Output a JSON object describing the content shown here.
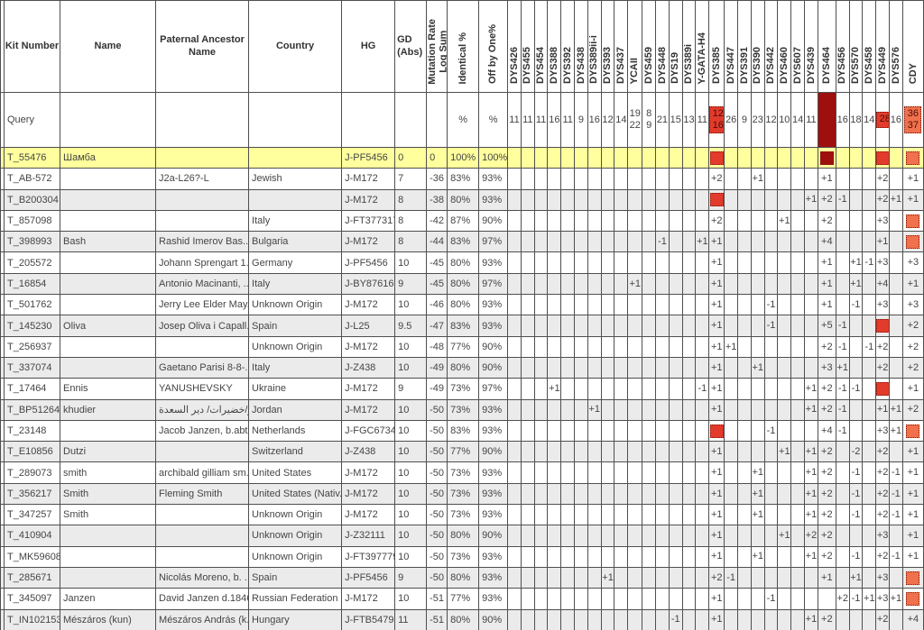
{
  "table": {
    "left_headers": [
      {
        "key": "kit",
        "label": "Kit Number"
      },
      {
        "key": "name",
        "label": "Name"
      },
      {
        "key": "ancestor",
        "label": "Paternal Ancestor\nName"
      },
      {
        "key": "country",
        "label": "Country"
      },
      {
        "key": "hg",
        "label": "HG"
      },
      {
        "key": "gd",
        "label": "GD\n(Abs)"
      }
    ],
    "rotated_headers": [
      {
        "key": "mut",
        "label": "Mutation Rate\nLog Sum"
      },
      {
        "key": "id",
        "label": "Identical %"
      },
      {
        "key": "off",
        "label": "Off by One%"
      }
    ],
    "marker_headers": [
      "DYS426",
      "DYS455",
      "DYS454",
      "DYS388",
      "DYS392",
      "DYS438",
      "DYS389ii-i",
      "DYS393",
      "DYS437",
      "YCAII",
      "DYS459",
      "DYS448",
      "DYS19",
      "DYS389i",
      "Y-GATA-H4",
      "DYS385",
      "DYS447",
      "DYS391",
      "DYS390",
      "DYS442",
      "DYS460",
      "DYS607",
      "DYS439",
      "DYS464",
      "DYS456",
      "DYS570",
      "DYS458",
      "DYS449",
      "DYS576",
      "CDY"
    ],
    "colors": {
      "red": "#e23b2c",
      "darkred": "#9e100e",
      "orange": "#f0714d",
      "highlight": "#ffff9e",
      "alt_row": "#ebebeb"
    },
    "query": {
      "kit": "Query",
      "id": "%",
      "off": "%",
      "m": {
        "0": "11",
        "1": "11",
        "2": "11",
        "3": "16",
        "4": "11",
        "5": "9",
        "6": "16",
        "7": "12",
        "8": "14",
        "9": "19\n22",
        "10": "8\n9",
        "11": "21",
        "12": "15",
        "13": "13",
        "14": "11",
        "15": "12\n16",
        "16": "26",
        "17": "9",
        "18": "23",
        "19": "12",
        "20": "10",
        "21": "14",
        "22": "11",
        "24": "16",
        "25": "18",
        "26": "14",
        "27": "28",
        "28": "16",
        "29": "36\n37"
      },
      "fill": {
        "15": "red",
        "23": "darkred",
        "27": "red",
        "29": "orange"
      }
    },
    "rows": [
      {
        "kit": "T_55476",
        "name": "Шамба",
        "ancestor": "",
        "country": "",
        "hg": "J-PF5456",
        "gd": "0",
        "mut": "0",
        "id": "100%",
        "off": "100%",
        "hl": true,
        "m": {},
        "sq": {
          "15": "red",
          "23": "darkred",
          "27": "red",
          "29": "orange"
        }
      },
      {
        "kit": "T_AB-572",
        "name": "",
        "ancestor": "J2a-L26?-L",
        "country": "Jewish",
        "hg": "J-M172",
        "gd": "7",
        "mut": "-36",
        "id": "83%",
        "off": "93%",
        "m": {
          "15": "+2",
          "18": "+1",
          "23": "+1",
          "27": "+2",
          "29": "+1"
        }
      },
      {
        "kit": "T_B200304",
        "name": "",
        "ancestor": "",
        "country": "",
        "hg": "J-M172",
        "gd": "8",
        "mut": "-38",
        "id": "80%",
        "off": "93%",
        "sq": {
          "15": "red"
        },
        "m": {
          "22": "+1",
          "23": "+2",
          "24": "-1",
          "27": "+2",
          "28": "+1",
          "29": "+1"
        }
      },
      {
        "kit": "T_857098",
        "name": "",
        "ancestor": "",
        "country": "Italy",
        "hg": "J-FT377317",
        "gd": "8",
        "mut": "-42",
        "id": "87%",
        "off": "90%",
        "sq": {
          "29": "orange"
        },
        "m": {
          "15": "+2",
          "20": "+1",
          "23": "+2",
          "27": "+3"
        }
      },
      {
        "kit": "T_398993",
        "name": "Bash",
        "ancestor": "Rashid Imerov Bas...",
        "country": "Bulgaria",
        "hg": "J-M172",
        "gd": "8",
        "mut": "-44",
        "id": "83%",
        "off": "97%",
        "sq": {
          "29": "orange"
        },
        "m": {
          "11": "-1",
          "14": "+1",
          "15": "+1",
          "23": "+4",
          "27": "+1"
        }
      },
      {
        "kit": "T_205572",
        "name": "",
        "ancestor": "Johann Sprengart 1...",
        "country": "Germany",
        "hg": "J-PF5456",
        "gd": "10",
        "mut": "-45",
        "id": "80%",
        "off": "93%",
        "m": {
          "15": "+1",
          "23": "+1",
          "25": "+1",
          "26": "-1",
          "27": "+3",
          "29": "+3"
        }
      },
      {
        "kit": "T_16854",
        "name": "",
        "ancestor": "Antonio Macinanti, ...",
        "country": "Italy",
        "hg": "J-BY87616",
        "gd": "9",
        "mut": "-45",
        "id": "80%",
        "off": "97%",
        "m": {
          "9": "+1",
          "15": "+1",
          "23": "+1",
          "25": "+1",
          "27": "+4",
          "29": "+1"
        }
      },
      {
        "kit": "T_501762",
        "name": "",
        "ancestor": "Jerry Lee Elder May...",
        "country": "Unknown Origin",
        "hg": "J-M172",
        "gd": "10",
        "mut": "-46",
        "id": "80%",
        "off": "93%",
        "m": {
          "15": "+1",
          "19": "-1",
          "23": "+1",
          "25": "-1",
          "27": "+3",
          "29": "+3"
        }
      },
      {
        "kit": "T_145230",
        "name": "Oliva",
        "ancestor": "Josep Oliva i Capall...",
        "country": "Spain",
        "hg": "J-L25",
        "gd": "9.5",
        "mut": "-47",
        "id": "83%",
        "off": "93%",
        "sq": {
          "27": "red"
        },
        "m": {
          "15": "+1",
          "19": "-1",
          "23": "+5",
          "24": "-1",
          "29": "+2"
        }
      },
      {
        "kit": "T_256937",
        "name": "",
        "ancestor": "",
        "country": "Unknown Origin",
        "hg": "J-M172",
        "gd": "10",
        "mut": "-48",
        "id": "77%",
        "off": "90%",
        "m": {
          "15": "+1",
          "16": "+1",
          "23": "+2",
          "24": "-1",
          "26": "-1",
          "27": "+2",
          "29": "+2"
        }
      },
      {
        "kit": "T_337074",
        "name": "",
        "ancestor": "Gaetano Parisi 8-8-...",
        "country": "Italy",
        "hg": "J-Z438",
        "gd": "10",
        "mut": "-49",
        "id": "80%",
        "off": "90%",
        "m": {
          "15": "+1",
          "18": "+1",
          "23": "+3",
          "24": "+1",
          "27": "+2",
          "29": "+2"
        }
      },
      {
        "kit": "T_17464",
        "name": "Ennis",
        "ancestor": "YANUSHEVSKY",
        "country": "Ukraine",
        "hg": "J-M172",
        "gd": "9",
        "mut": "-49",
        "id": "73%",
        "off": "97%",
        "sq": {
          "27": "red"
        },
        "m": {
          "3": "+1",
          "14": "-1",
          "15": "+1",
          "22": "+1",
          "23": "+2",
          "24": "-1",
          "25": "-1",
          "29": "+1"
        }
      },
      {
        "kit": "T_BP51264",
        "name": "khudier",
        "ancestor": "خضير/خضيرات/ دير السعدة",
        "country": "Jordan",
        "hg": "J-M172",
        "gd": "10",
        "mut": "-50",
        "id": "73%",
        "off": "93%",
        "m": {
          "6": "+1",
          "15": "+1",
          "22": "+1",
          "23": "+2",
          "24": "-1",
          "27": "+1",
          "28": "+1",
          "29": "+2"
        }
      },
      {
        "kit": "T_23148",
        "name": "",
        "ancestor": "Jacob Janzen, b.abt...",
        "country": "Netherlands",
        "hg": "J-FGC6734",
        "gd": "10",
        "mut": "-50",
        "id": "83%",
        "off": "93%",
        "sq": {
          "15": "red",
          "29": "orange"
        },
        "m": {
          "19": "-1",
          "23": "+4",
          "24": "-1",
          "27": "+3",
          "28": "+1"
        }
      },
      {
        "kit": "T_E10856",
        "name": "Dutzi",
        "ancestor": "",
        "country": "Switzerland",
        "hg": "J-Z438",
        "gd": "10",
        "mut": "-50",
        "id": "77%",
        "off": "90%",
        "m": {
          "15": "+1",
          "20": "+1",
          "22": "+1",
          "23": "+2",
          "25": "-2",
          "27": "+2",
          "29": "+1"
        }
      },
      {
        "kit": "T_289073",
        "name": "smith",
        "ancestor": "archibald gilliam sm...",
        "country": "United States",
        "hg": "J-M172",
        "gd": "10",
        "mut": "-50",
        "id": "73%",
        "off": "93%",
        "m": {
          "15": "+1",
          "18": "+1",
          "22": "+1",
          "23": "+2",
          "25": "-1",
          "27": "+2",
          "28": "-1",
          "29": "+1"
        }
      },
      {
        "kit": "T_356217",
        "name": "Smith",
        "ancestor": "Fleming Smith",
        "country": "United States (Nativ...",
        "hg": "J-M172",
        "gd": "10",
        "mut": "-50",
        "id": "73%",
        "off": "93%",
        "m": {
          "15": "+1",
          "18": "+1",
          "22": "+1",
          "23": "+2",
          "25": "-1",
          "27": "+2",
          "28": "-1",
          "29": "+1"
        }
      },
      {
        "kit": "T_347257",
        "name": "Smith",
        "ancestor": "",
        "country": "Unknown Origin",
        "hg": "J-M172",
        "gd": "10",
        "mut": "-50",
        "id": "73%",
        "off": "93%",
        "m": {
          "15": "+1",
          "18": "+1",
          "22": "+1",
          "23": "+2",
          "25": "-1",
          "27": "+2",
          "28": "-1",
          "29": "+1"
        }
      },
      {
        "kit": "T_410904",
        "name": "",
        "ancestor": "",
        "country": "Unknown Origin",
        "hg": "J-Z32111",
        "gd": "10",
        "mut": "-50",
        "id": "80%",
        "off": "90%",
        "m": {
          "15": "+1",
          "20": "+1",
          "22": "+2",
          "23": "+2",
          "27": "+3",
          "29": "+1"
        }
      },
      {
        "kit": "T_MK59608",
        "name": "",
        "ancestor": "",
        "country": "Unknown Origin",
        "hg": "J-FT397779",
        "gd": "10",
        "mut": "-50",
        "id": "73%",
        "off": "93%",
        "m": {
          "15": "+1",
          "18": "+1",
          "22": "+1",
          "23": "+2",
          "25": "-1",
          "27": "+2",
          "28": "-1",
          "29": "+1"
        }
      },
      {
        "kit": "T_285671",
        "name": "",
        "ancestor": "Nicolás Moreno, b. ...",
        "country": "Spain",
        "hg": "J-PF5456",
        "gd": "9",
        "mut": "-50",
        "id": "80%",
        "off": "93%",
        "sq": {
          "29": "orange"
        },
        "m": {
          "7": "+1",
          "15": "+2",
          "16": "-1",
          "23": "+1",
          "25": "+1",
          "27": "+3"
        }
      },
      {
        "kit": "T_345097",
        "name": "Janzen",
        "ancestor": "David Janzen d.1846",
        "country": "Russian Federation",
        "hg": "J-M172",
        "gd": "10",
        "mut": "-51",
        "id": "77%",
        "off": "93%",
        "sq": {
          "29": "orange"
        },
        "m": {
          "15": "+1",
          "19": "-1",
          "24": "+2",
          "25": "-1",
          "26": "+1",
          "27": "+3",
          "28": "+1"
        }
      },
      {
        "kit": "T_IN102153",
        "name": "Mészáros (kun)",
        "ancestor": "Mészáros András (k...",
        "country": "Hungary",
        "hg": "J-FTB54797",
        "gd": "11",
        "mut": "-51",
        "id": "80%",
        "off": "90%",
        "m": {
          "12": "-1",
          "15": "+1",
          "22": "+1",
          "23": "+2",
          "27": "+2",
          "29": "+4"
        }
      }
    ]
  }
}
